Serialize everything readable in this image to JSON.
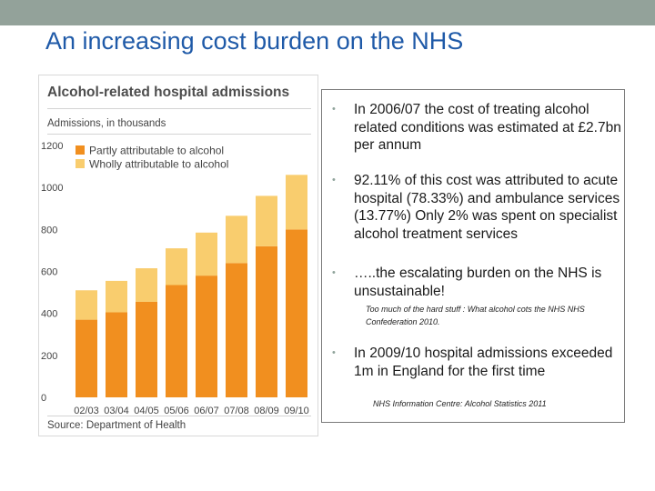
{
  "slide": {
    "title": "An increasing  cost burden on the NHS"
  },
  "chart_panel": {
    "title": "Alcohol-related hospital admissions",
    "units_label": "Admissions, in thousands",
    "source": "Source: Department of Health"
  },
  "chart_data": {
    "type": "bar",
    "stacked": true,
    "title": "Alcohol-related hospital admissions",
    "ylabel": "Admissions, in thousands",
    "ylim": [
      0,
      1200
    ],
    "yticks": [
      0,
      200,
      400,
      600,
      800,
      1000,
      1200
    ],
    "categories": [
      "02/03",
      "03/04",
      "04/05",
      "05/06",
      "06/07",
      "07/08",
      "08/09",
      "09/10"
    ],
    "series": [
      {
        "name": "Partly attributable to alcohol",
        "color": "#f18f1f",
        "values": [
          370,
          405,
          455,
          535,
          580,
          640,
          720,
          800
        ]
      },
      {
        "name": "Wholly attributable to alcohol",
        "color": "#f9cd6e",
        "values": [
          140,
          150,
          160,
          175,
          205,
          225,
          240,
          260
        ]
      }
    ],
    "legend_position": "top-left",
    "grid": false
  },
  "bullets": [
    {
      "text": "In 2006/07 the cost of treating alcohol related conditions was estimated at £2.7bn per annum"
    },
    {
      "text": "92.11% of this cost was attributed to acute hospital (78.33%) and ambulance services (13.77%) Only 2% was spent on specialist alcohol treatment services"
    },
    {
      "text": "…..the escalating burden on the NHS is unsustainable!"
    },
    {
      "text": "In 2009/10 hospital admissions exceeded 1m  in England for the first time"
    }
  ],
  "notes": {
    "first": "Too much of the hard stuff : What alcohol cots the NHS NHS Confederation 2010.",
    "second": "NHS Information Centre: Alcohol Statistics 2011"
  },
  "colors": {
    "title": "#1f5aa8",
    "topbar": "#93a29a",
    "partly": "#f18f1f",
    "wholly": "#f9cd6e"
  }
}
